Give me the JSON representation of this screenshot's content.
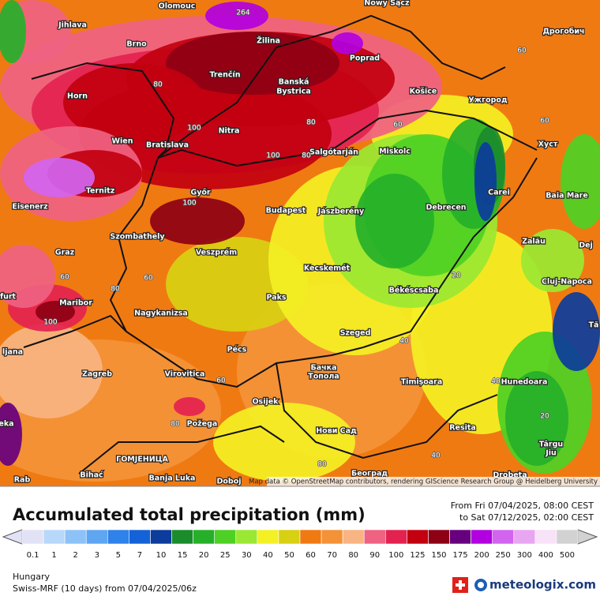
{
  "map": {
    "places": [
      {
        "label": "Olomouc"
      },
      {
        "label": "Nowy Sącz"
      },
      {
        "label": "Jihlava"
      },
      {
        "label": "Žilina"
      },
      {
        "label": "Poprad"
      },
      {
        "label": "Дрогобич"
      },
      {
        "label": "Brno"
      },
      {
        "label": "Trenčín"
      },
      {
        "label": "Banská"
      },
      {
        "label": "Bystrica"
      },
      {
        "label": "Košice"
      },
      {
        "label": "Ужгород"
      },
      {
        "label": "Horn"
      },
      {
        "label": "Nitra"
      },
      {
        "label": "Wien"
      },
      {
        "label": "Bratislava"
      },
      {
        "label": "Salgótarján"
      },
      {
        "label": "Miskolc"
      },
      {
        "label": "Хуст"
      },
      {
        "label": "Ternitz"
      },
      {
        "label": "Győr"
      },
      {
        "label": "Budapest"
      },
      {
        "label": "Jászberény"
      },
      {
        "label": "Debrecen"
      },
      {
        "label": "Carei"
      },
      {
        "label": "Baia Mare"
      },
      {
        "label": "Eisenerz"
      },
      {
        "label": "Szombathely"
      },
      {
        "label": "Veszprém"
      },
      {
        "label": "Graz"
      },
      {
        "label": "Zalău"
      },
      {
        "label": "Dej"
      },
      {
        "label": "Kecskemét"
      },
      {
        "label": "Cluj-Napoca"
      },
      {
        "label": "Békéscsaba"
      },
      {
        "label": "Paks"
      },
      {
        "label": "furt"
      },
      {
        "label": "Maribor"
      },
      {
        "label": "Nagykanizsa"
      },
      {
        "label": "Tă"
      },
      {
        "label": "Szeged"
      },
      {
        "label": "ljana"
      },
      {
        "label": "Pécs"
      },
      {
        "label": "Бачка"
      },
      {
        "label": "Топола"
      },
      {
        "label": "Zagreb"
      },
      {
        "label": "Virovitica"
      },
      {
        "label": "Timișoara"
      },
      {
        "label": "Hunedoara"
      },
      {
        "label": "Osijek"
      },
      {
        "label": "Požega"
      },
      {
        "label": "Resita"
      },
      {
        "label": "eka"
      },
      {
        "label": "Нови Сад"
      },
      {
        "label": "Târgu"
      },
      {
        "label": "Jiu"
      },
      {
        "label": "ГОМЈЕНИЦА"
      },
      {
        "label": "Bihać"
      },
      {
        "label": "Banja Luka"
      },
      {
        "label": "Doboj"
      },
      {
        "label": "Београд"
      },
      {
        "label": "Drobeta"
      },
      {
        "label": "Rab"
      }
    ],
    "contour_labels": [
      264,
      80,
      80,
      60,
      60,
      60,
      100,
      100,
      80,
      100,
      60,
      60,
      80,
      100,
      20,
      40,
      60,
      80,
      80,
      40,
      20,
      40
    ],
    "attribution": "Map data © OpenStreetMap contributors, rendering GIScience Research Group @ Heidelberg University"
  },
  "legend": {
    "title": "Accumulated total precipitation (mm)",
    "from": "From Fri 07/04/2025, 08:00 CEST",
    "to": "to Sat 07/12/2025, 02:00 CEST",
    "levels": [
      {
        "value": 0.1,
        "color": "#e2e2f6"
      },
      {
        "value": 1,
        "color": "#b8d8fa"
      },
      {
        "value": 2,
        "color": "#8cc2f8"
      },
      {
        "value": 3,
        "color": "#5ea6f2"
      },
      {
        "value": 5,
        "color": "#2e82ea"
      },
      {
        "value": 7,
        "color": "#1462d8"
      },
      {
        "value": 10,
        "color": "#0c3c9c"
      },
      {
        "value": 15,
        "color": "#1a8c2c"
      },
      {
        "value": 20,
        "color": "#26b02a"
      },
      {
        "value": 25,
        "color": "#4ed024"
      },
      {
        "value": 30,
        "color": "#9ae832"
      },
      {
        "value": 40,
        "color": "#f4f024"
      },
      {
        "value": 50,
        "color": "#d8d012"
      },
      {
        "value": 60,
        "color": "#f07a12"
      },
      {
        "value": 70,
        "color": "#f49238"
      },
      {
        "value": 80,
        "color": "#f8b482"
      },
      {
        "value": 90,
        "color": "#f06282"
      },
      {
        "value": 100,
        "color": "#e42250"
      },
      {
        "value": 125,
        "color": "#c20010"
      },
      {
        "value": 150,
        "color": "#8e0014"
      },
      {
        "value": 175,
        "color": "#66007e"
      },
      {
        "value": 200,
        "color": "#b200e0"
      },
      {
        "value": 250,
        "color": "#d264f0"
      },
      {
        "value": 300,
        "color": "#e8a6f2"
      },
      {
        "value": 400,
        "color": "#f8e2f8"
      },
      {
        "value": 500,
        "color": "#d2d2d2"
      }
    ]
  },
  "footer": {
    "region": "Hungary",
    "model": "Swiss-MRF (10 days)  from  07/04/2025/06z",
    "brand": "meteologix.com"
  }
}
